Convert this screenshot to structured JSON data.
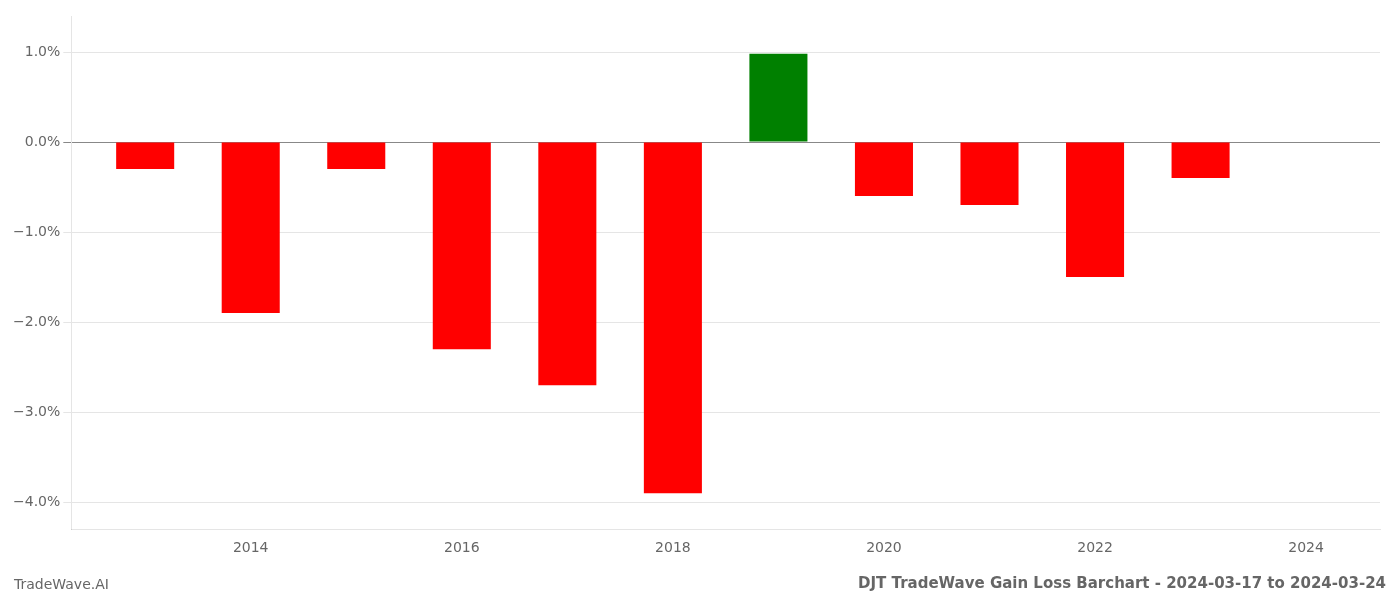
{
  "chart_data": {
    "type": "bar",
    "title": "DJT TradeWave Gain Loss Barchart - 2024-03-17 to 2024-03-24",
    "annotations": [
      "TradeWave.AI"
    ],
    "x": [
      2013,
      2014,
      2015,
      2016,
      2017,
      2018,
      2019,
      2020,
      2021,
      2022,
      2023
    ],
    "values": [
      -0.003,
      -0.019,
      -0.003,
      -0.023,
      -0.027,
      -0.039,
      0.0098,
      -0.006,
      -0.007,
      -0.015,
      -0.004
    ],
    "colors": [
      "#ff0000",
      "#ff0000",
      "#ff0000",
      "#ff0000",
      "#ff0000",
      "#ff0000",
      "#008000",
      "#ff0000",
      "#ff0000",
      "#ff0000",
      "#ff0000"
    ],
    "xlim": [
      2012.3,
      2024.7
    ],
    "xticks": [
      2014,
      2016,
      2018,
      2020,
      2022,
      2024
    ],
    "ylim": [
      -0.043,
      0.014
    ],
    "yticks": [
      {
        "value": 0.01,
        "label": "1.0%"
      },
      {
        "value": 0,
        "label": "0.0%"
      },
      {
        "value": -0.01,
        "label": "−1.0%"
      },
      {
        "value": -0.02,
        "label": "−2.0%"
      },
      {
        "value": -0.03,
        "label": "−3.0%"
      },
      {
        "value": -0.04,
        "label": "−4.0%"
      }
    ],
    "grid": true
  }
}
